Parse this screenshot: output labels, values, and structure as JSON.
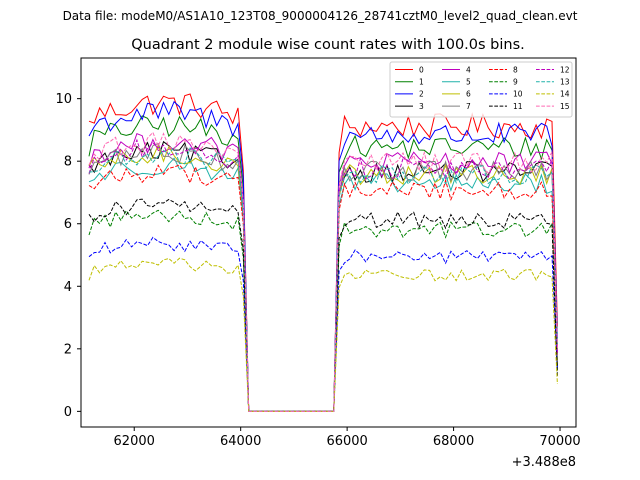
{
  "figure": {
    "suptitle": "Data file: modeM0/AS1A10_123T08_9000004126_28741cztM0_level2_quad_clean.evt"
  },
  "chart_data": {
    "type": "line",
    "title": "Quadrant 2 module wise count rates with 100.0s bins.",
    "xlabel": "",
    "ylabel": "",
    "x_offset_label": "+3.488e8",
    "xlim": [
      61000,
      70300
    ],
    "ylim": [
      -0.5,
      11.3
    ],
    "xticks": [
      62000,
      64000,
      66000,
      68000,
      70000
    ],
    "yticks": [
      0,
      2,
      4,
      6,
      8,
      10
    ],
    "xtick_labels": [
      "62000",
      "64000",
      "66000",
      "68000",
      "70000"
    ],
    "ytick_labels": [
      "0",
      "2",
      "4",
      "6",
      "8",
      "10"
    ],
    "grid": false,
    "legend_position": "top-right",
    "legend_columns": 4,
    "shape": {
      "seg1_start": 61150,
      "seg1_end": 64050,
      "gap_start": 64150,
      "gap_end": 65750,
      "seg2_start": 65850,
      "seg2_end": 69950,
      "bin": 100
    },
    "series": [
      {
        "name": "0",
        "color": "#ff0000",
        "dash": "solid",
        "level": 9.4
      },
      {
        "name": "1",
        "color": "#008000",
        "dash": "solid",
        "level": 8.7
      },
      {
        "name": "2",
        "color": "#0000ff",
        "dash": "solid",
        "level": 9.1
      },
      {
        "name": "3",
        "color": "#000000",
        "dash": "solid",
        "level": 7.9
      },
      {
        "name": "4",
        "color": "#bf00bf",
        "dash": "solid",
        "level": 8.2
      },
      {
        "name": "5",
        "color": "#20b2aa",
        "dash": "solid",
        "level": 7.5
      },
      {
        "name": "6",
        "color": "#bfbf00",
        "dash": "solid",
        "level": 7.8
      },
      {
        "name": "7",
        "color": "#808080",
        "dash": "solid",
        "level": 7.9
      },
      {
        "name": "8",
        "color": "#ff0000",
        "dash": "dashed",
        "level": 7.3
      },
      {
        "name": "9",
        "color": "#008000",
        "dash": "dashed",
        "level": 6.0
      },
      {
        "name": "10",
        "color": "#0000ff",
        "dash": "dashed",
        "level": 5.1
      },
      {
        "name": "11",
        "color": "#000000",
        "dash": "dashed",
        "level": 6.3
      },
      {
        "name": "12",
        "color": "#bf00bf",
        "dash": "dashed",
        "level": 8.0
      },
      {
        "name": "13",
        "color": "#20b2aa",
        "dash": "dashed",
        "level": 7.8
      },
      {
        "name": "14",
        "color": "#bfbf00",
        "dash": "dashed",
        "level": 4.5
      },
      {
        "name": "15",
        "color": "#ff69b4",
        "dash": "dashed",
        "level": 8.2
      }
    ]
  }
}
